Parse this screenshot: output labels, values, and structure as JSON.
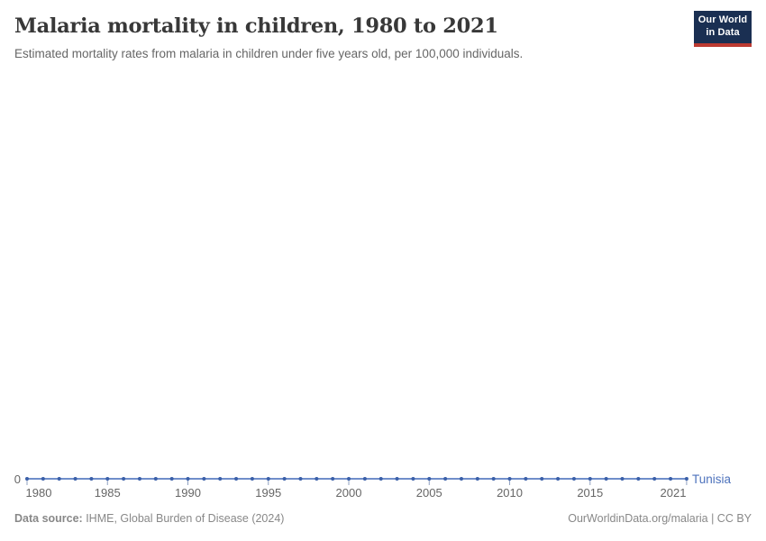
{
  "header": {
    "title": "Malaria mortality in children, 1980 to 2021",
    "subtitle": "Estimated mortality rates from malaria in children under five years old, per 100,000 individuals."
  },
  "branding": {
    "logo_line1": "Our World",
    "logo_line2": "in Data"
  },
  "chart_data": {
    "type": "line",
    "title": "Malaria mortality in children, 1980 to 2021",
    "xlabel": "",
    "ylabel": "",
    "grid": false,
    "legend_position": "end-of-line",
    "x": [
      1980,
      1981,
      1982,
      1983,
      1984,
      1985,
      1986,
      1987,
      1988,
      1989,
      1990,
      1991,
      1992,
      1993,
      1994,
      1995,
      1996,
      1997,
      1998,
      1999,
      2000,
      2001,
      2002,
      2003,
      2004,
      2005,
      2006,
      2007,
      2008,
      2009,
      2010,
      2011,
      2012,
      2013,
      2014,
      2015,
      2016,
      2017,
      2018,
      2019,
      2020,
      2021
    ],
    "series": [
      {
        "name": "Tunisia",
        "values": [
          0,
          0,
          0,
          0,
          0,
          0,
          0,
          0,
          0,
          0,
          0,
          0,
          0,
          0,
          0,
          0,
          0,
          0,
          0,
          0,
          0,
          0,
          0,
          0,
          0,
          0,
          0,
          0,
          0,
          0,
          0,
          0,
          0,
          0,
          0,
          0,
          0,
          0,
          0,
          0,
          0,
          0
        ]
      }
    ],
    "x_ticks": [
      1980,
      1985,
      1990,
      1995,
      2000,
      2005,
      2010,
      2015,
      2021
    ],
    "y_ticks": [
      0
    ],
    "y_tick_labels": [
      "0"
    ],
    "xlim": [
      1980,
      2021
    ],
    "ylim": [
      0,
      0
    ]
  },
  "footer": {
    "source_label": "Data source:",
    "source_text": " IHME, Global Burden of Disease (2024)",
    "credit": "OurWorldinData.org/malaria | CC BY"
  },
  "colors": {
    "line": "#5b7ec2",
    "dot": "#3a5fa8",
    "entity_label": "#4d72bc",
    "tick_mark": "#8fa0c0",
    "axis_text": "#666666",
    "title_text": "#383838",
    "logo_bg": "#1a2f52",
    "logo_red": "#bc3a31"
  }
}
